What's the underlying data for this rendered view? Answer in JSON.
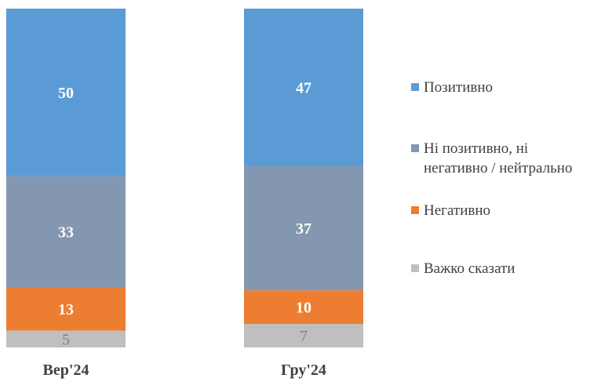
{
  "chart_data": {
    "type": "bar",
    "stacked": true,
    "percent": true,
    "categories": [
      "Вер'24",
      "Гру'24"
    ],
    "series": [
      {
        "name": "Позитивно",
        "values": [
          50,
          47
        ],
        "color": "#5B9BD5",
        "label_color": "#ffffff"
      },
      {
        "name": "Ні позитивно, ні\nнегативно / нейтрально",
        "values": [
          33,
          37
        ],
        "color": "#8497B0",
        "label_color": "#ffffff"
      },
      {
        "name": "Негативно",
        "values": [
          13,
          10
        ],
        "color": "#ED7D31",
        "label_color": "#ffffff"
      },
      {
        "name": "Важко сказати",
        "values": [
          5,
          7
        ],
        "color": "#BFBFBF",
        "label_color": "#7f7f7f"
      }
    ],
    "legend": "right",
    "grid": false,
    "title": "",
    "xlabel": "",
    "ylabel": ""
  }
}
